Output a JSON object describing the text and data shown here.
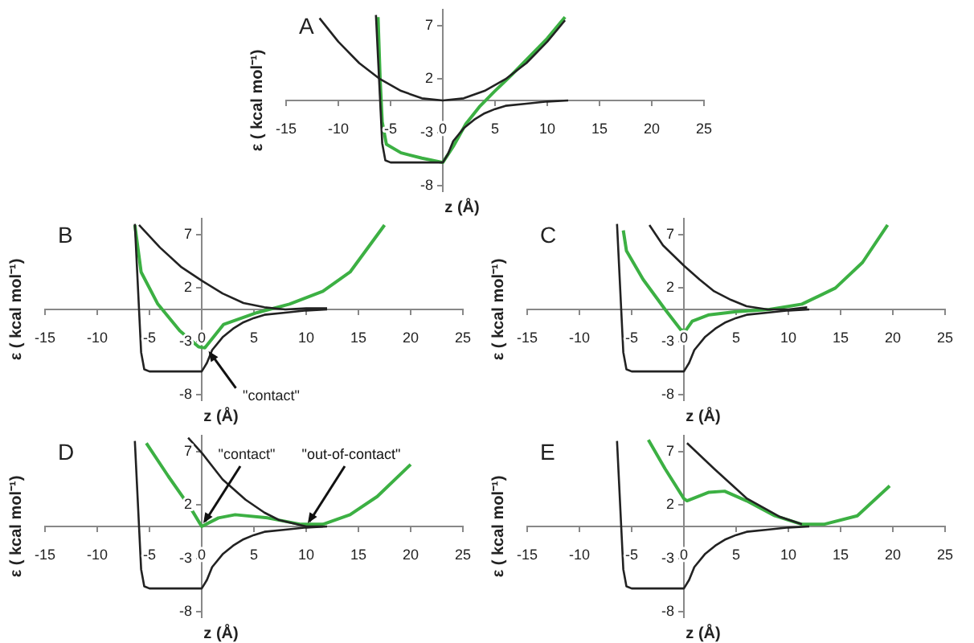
{
  "chart_data": [
    {
      "type": "line",
      "title": "A",
      "xlabel": "z (Å)",
      "ylabel": "ε ( kcal mol⁻¹)",
      "xlim": [
        -15,
        25
      ],
      "ylim": [
        -8.5,
        8.5
      ],
      "xticks": [
        -15,
        -10,
        -5,
        0,
        5,
        10,
        15,
        20,
        25
      ],
      "yticks": [
        -8,
        -3,
        2,
        7
      ],
      "series": [
        {
          "color": "#222222",
          "x": [
            -6.4,
            -6.2,
            -6.0,
            -5.8,
            -5.5,
            -5,
            -3,
            -1,
            0,
            0.5,
            1,
            2,
            3,
            4,
            5,
            6,
            8,
            10,
            12
          ],
          "values": [
            8,
            4,
            0,
            -4,
            -5.6,
            -5.8,
            -5.8,
            -5.8,
            -5.8,
            -5,
            -3.8,
            -2.6,
            -1.8,
            -1.2,
            -0.8,
            -0.5,
            -0.3,
            -0.1,
            0
          ]
        },
        {
          "color": "#222222",
          "x": [
            -11.8,
            -10,
            -8,
            -6,
            -4,
            -2,
            0,
            2,
            4,
            6,
            8,
            10,
            11.7
          ],
          "values": [
            7.7,
            5.5,
            3.5,
            2,
            0.9,
            0.2,
            0,
            0.2,
            0.9,
            2,
            3.5,
            5.5,
            7.5
          ]
        },
        {
          "color": "#3cb043",
          "x": [
            -6.2,
            -6,
            -5.8,
            -5.4,
            -4,
            -2,
            0,
            1,
            2.2,
            3.5,
            4.9,
            6.5,
            8,
            10,
            11.7
          ],
          "values": [
            7.8,
            2,
            -2,
            -4.1,
            -4.9,
            -5.4,
            -5.8,
            -4.3,
            -2.2,
            -0.6,
            0.8,
            2.3,
            3.8,
            5.8,
            7.8
          ]
        }
      ]
    },
    {
      "type": "line",
      "title": "B",
      "xlabel": "z (Å)",
      "ylabel": "ε ( kcal mol⁻¹)",
      "xlim": [
        -15,
        25
      ],
      "ylim": [
        -8.5,
        8.5
      ],
      "xticks": [
        -15,
        -10,
        -5,
        0,
        5,
        10,
        15,
        20,
        25
      ],
      "yticks": [
        -8,
        -3,
        2,
        7
      ],
      "annotations": [
        {
          "text": "\"contact\"",
          "x": 0.5,
          "y": -3.6
        }
      ],
      "series": [
        {
          "color": "#222222",
          "x": [
            -6.4,
            -6.2,
            -6.0,
            -5.8,
            -5.5,
            -5,
            -3,
            -1,
            0,
            0.5,
            1,
            2,
            3,
            4,
            5,
            6,
            8,
            10,
            12
          ],
          "values": [
            8,
            4,
            0,
            -4,
            -5.6,
            -5.8,
            -5.8,
            -5.8,
            -5.8,
            -5,
            -3.8,
            -2.6,
            -1.8,
            -1.2,
            -0.8,
            -0.5,
            -0.3,
            -0.1,
            0
          ]
        },
        {
          "color": "#222222",
          "x": [
            -6,
            -4,
            -2,
            0,
            2,
            4,
            6,
            8,
            10,
            12
          ],
          "values": [
            7.9,
            5.8,
            4,
            2.7,
            1.5,
            0.6,
            0.2,
            0,
            0.1,
            0.1
          ]
        },
        {
          "color": "#3cb043",
          "x": [
            -6.4,
            -5.8,
            -4.2,
            -2.1,
            -0.3,
            0.3,
            2.1,
            5.3,
            8.4,
            11.6,
            14.2,
            17.5
          ],
          "values": [
            7.9,
            3.5,
            0.5,
            -2,
            -3.5,
            -3.6,
            -1.4,
            -0.3,
            0.5,
            1.7,
            3.5,
            7.9
          ]
        }
      ]
    },
    {
      "type": "line",
      "title": "C",
      "xlabel": "z (Å)",
      "ylabel": "ε ( kcal mol⁻¹)",
      "xlim": [
        -15,
        25
      ],
      "ylim": [
        -8.5,
        8.5
      ],
      "xticks": [
        -15,
        -10,
        -5,
        0,
        5,
        10,
        15,
        20,
        25
      ],
      "yticks": [
        -8,
        -3,
        2,
        7
      ],
      "series": [
        {
          "color": "#222222",
          "x": [
            -6.4,
            -6.2,
            -6.0,
            -5.8,
            -5.5,
            -5,
            -3,
            -1,
            0,
            0.5,
            1,
            2,
            3,
            4,
            5,
            6,
            8,
            10,
            12
          ],
          "values": [
            8,
            4,
            0,
            -4,
            -5.6,
            -5.8,
            -5.8,
            -5.8,
            -5.8,
            -5,
            -3.8,
            -2.6,
            -1.8,
            -1.2,
            -0.8,
            -0.5,
            -0.3,
            -0.1,
            0
          ]
        },
        {
          "color": "#222222",
          "x": [
            -3.3,
            -2,
            0,
            1.5,
            2.9,
            4.5,
            6,
            8,
            10,
            11.8
          ],
          "values": [
            7.9,
            6,
            4.1,
            2.8,
            1.7,
            0.9,
            0.3,
            0,
            0,
            0.2
          ]
        },
        {
          "color": "#3cb043",
          "x": [
            -5.8,
            -5.5,
            -3.9,
            -1.8,
            -0.3,
            0.15,
            0.8,
            2.4,
            5,
            8.2,
            11.3,
            14.5,
            17.1,
            19.5
          ],
          "values": [
            7.4,
            5.5,
            2.8,
            0,
            -1.9,
            -2,
            -1.1,
            -0.5,
            -0.2,
            0,
            0.5,
            2,
            4.4,
            7.9
          ]
        }
      ]
    },
    {
      "type": "line",
      "title": "D",
      "xlabel": "z (Å)",
      "ylabel": "ε ( kcal mol⁻¹)",
      "xlim": [
        -15,
        25
      ],
      "ylim": [
        -8.5,
        8.5
      ],
      "xticks": [
        -15,
        -10,
        -5,
        0,
        5,
        10,
        15,
        20,
        25
      ],
      "yticks": [
        -8,
        -3,
        2,
        7
      ],
      "annotations": [
        {
          "text": "\"contact\"",
          "x": 0,
          "y": 0
        },
        {
          "text": "\"out-of-contact\"",
          "x": 10,
          "y": 0
        }
      ],
      "series": [
        {
          "color": "#222222",
          "x": [
            -6.4,
            -6.2,
            -6.0,
            -5.8,
            -5.5,
            -5,
            -3,
            -1,
            0,
            0.5,
            1,
            2,
            3,
            4,
            5,
            6,
            8,
            10,
            12
          ],
          "values": [
            8,
            4,
            0,
            -4,
            -5.6,
            -5.8,
            -5.8,
            -5.8,
            -5.8,
            -5,
            -3.8,
            -2.6,
            -1.8,
            -1.2,
            -0.8,
            -0.5,
            -0.3,
            -0.1,
            0
          ]
        },
        {
          "color": "#222222",
          "x": [
            -1.3,
            0,
            2,
            4.2,
            6,
            7.4,
            10,
            11.6
          ],
          "values": [
            8.3,
            6.9,
            4.4,
            2.5,
            1.3,
            0.6,
            0,
            0
          ]
        },
        {
          "color": "#3cb043",
          "x": [
            -5.3,
            -3.2,
            -1.05,
            0,
            1.6,
            3.2,
            6.3,
            9.5,
            11.6,
            14.2,
            16.8,
            20
          ],
          "values": [
            7.8,
            4.7,
            1.7,
            0,
            0.8,
            1.1,
            0.8,
            0.2,
            0.2,
            1.1,
            2.8,
            5.8
          ]
        }
      ]
    },
    {
      "type": "line",
      "title": "E",
      "xlabel": "z (Å)",
      "ylabel": "ε ( kcal mol⁻¹)",
      "xlim": [
        -15,
        25
      ],
      "ylim": [
        -8.5,
        8.5
      ],
      "xticks": [
        -15,
        -10,
        -5,
        0,
        5,
        10,
        15,
        20,
        25
      ],
      "yticks": [
        -8,
        -3,
        2,
        7
      ],
      "series": [
        {
          "color": "#222222",
          "x": [
            -6.4,
            -6.2,
            -6.0,
            -5.8,
            -5.5,
            -5,
            -3,
            -1,
            0,
            0.5,
            1,
            2,
            3,
            4,
            5,
            6,
            8,
            10,
            12
          ],
          "values": [
            8,
            4,
            0,
            -4,
            -5.6,
            -5.8,
            -5.8,
            -5.8,
            -5.8,
            -5,
            -3.8,
            -2.6,
            -1.8,
            -1.2,
            -0.8,
            -0.5,
            -0.3,
            -0.1,
            0
          ]
        },
        {
          "color": "#222222",
          "x": [
            0.3,
            2.9,
            6.05,
            9.2,
            11.3
          ],
          "values": [
            7.8,
            5.4,
            2.6,
            0.9,
            0.2
          ]
        },
        {
          "color": "#3cb043",
          "x": [
            -3.4,
            -1.8,
            0,
            0.3,
            2.4,
            3.9,
            6,
            8.7,
            11.3,
            13.4,
            16.6,
            19.7
          ],
          "values": [
            8.1,
            5.4,
            2.6,
            2.4,
            3.2,
            3.3,
            2.4,
            1,
            0.2,
            0.2,
            1,
            3.8
          ]
        }
      ]
    }
  ]
}
